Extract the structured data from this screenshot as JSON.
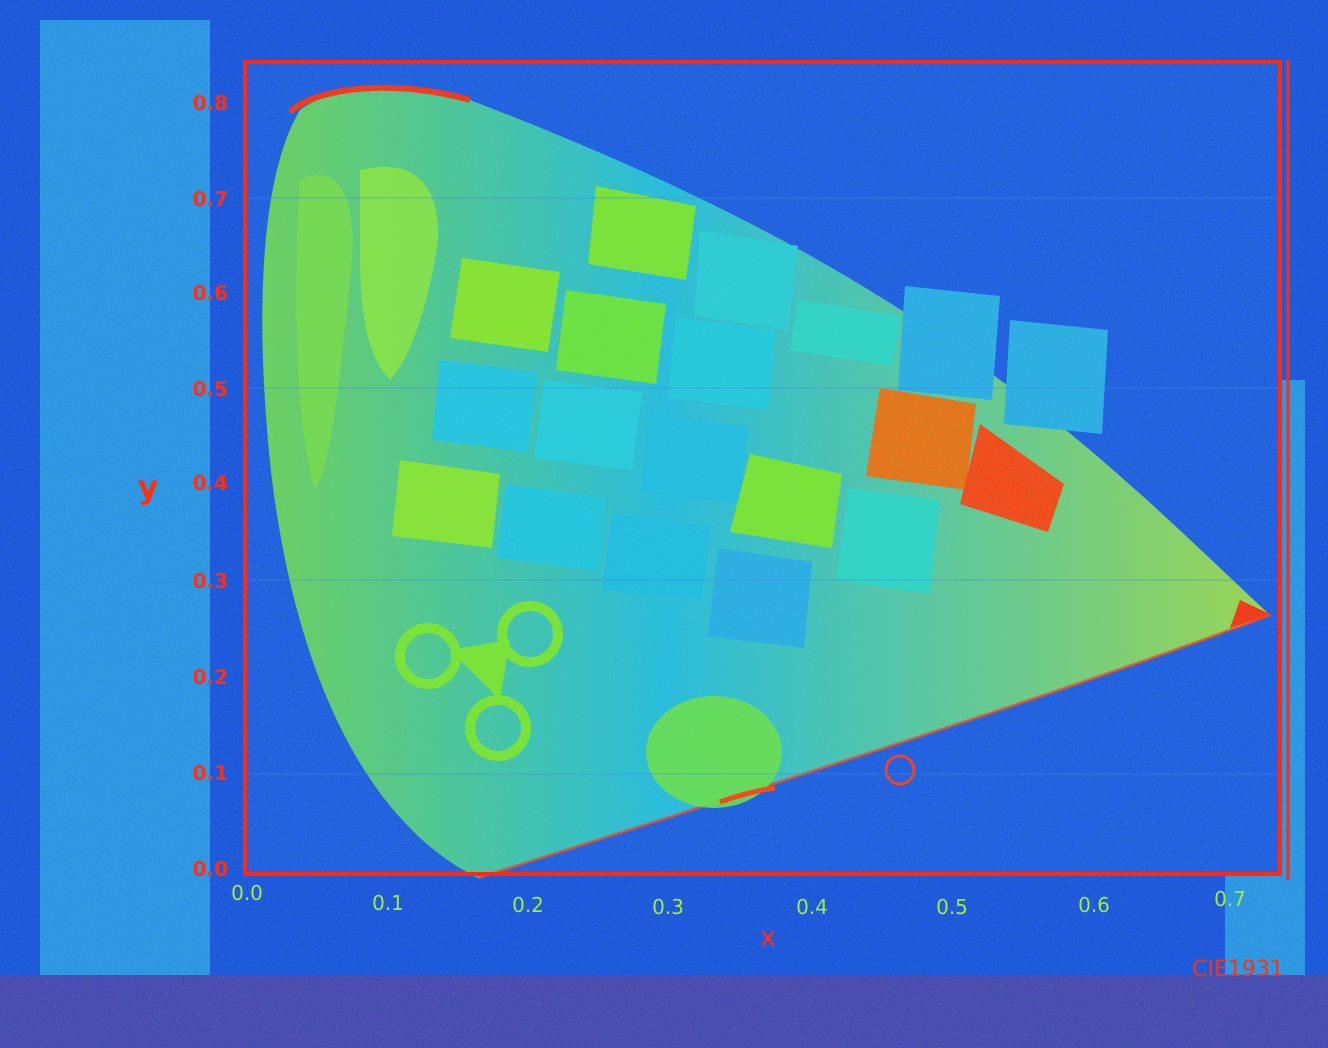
{
  "axes": {
    "y_label": "y",
    "x_label": "x",
    "y_ticks": [
      "0.0",
      "0.1",
      "0.2",
      "0.3",
      "0.4",
      "0.5",
      "0.6",
      "0.7",
      "0.8"
    ],
    "x_ticks": [
      "0.0",
      "0.1",
      "0.2",
      "0.3",
      "0.4",
      "0.5",
      "0.6",
      "0.7"
    ]
  },
  "caption": "CIE1931",
  "colors": {
    "background": "#1a4ae0",
    "panel": "#2a8ee8",
    "frame": "#ff2a10",
    "tick_label": "#ff3010",
    "x_tick_label": "#9cf03a",
    "locus_fill": "#20c0e0",
    "patch_green": "#7ee030",
    "patch_cyan": "#20c8e8",
    "patch_red": "#ff4010",
    "patch_orange": "#f06a10"
  }
}
